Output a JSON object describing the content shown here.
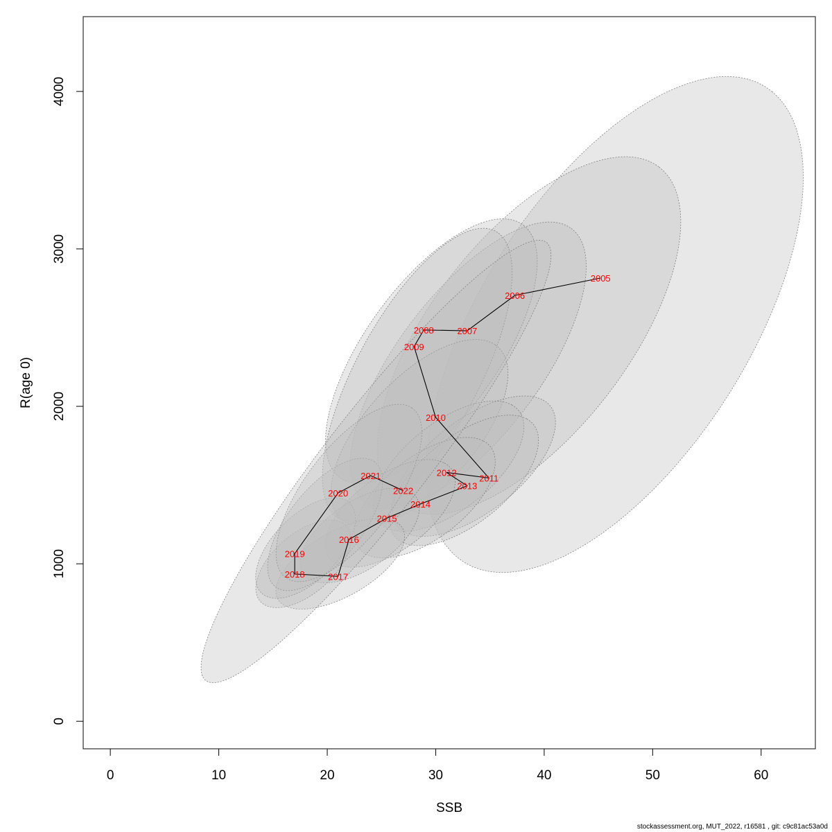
{
  "chart_data": {
    "type": "scatter",
    "title": "",
    "xlabel": "SSB",
    "ylabel": "R(age 0)",
    "xlim": [
      -2.5,
      65
    ],
    "ylim": [
      -175,
      4475
    ],
    "x_ticks": [
      0,
      10,
      20,
      30,
      40,
      50,
      60
    ],
    "y_ticks": [
      0,
      1000,
      2000,
      3000,
      4000
    ],
    "x_tick_labels": [
      "0",
      "10",
      "20",
      "30",
      "40",
      "50",
      "60"
    ],
    "y_tick_labels": [
      "0",
      "1000",
      "2000",
      "3000",
      "4000"
    ],
    "grid": false,
    "legend": "none",
    "colors": {
      "points_line": "#000000",
      "year_labels": "#ff0000",
      "ellipse_fill": "#bebebe",
      "ellipse_stroke": "#808080"
    },
    "points": [
      {
        "year": "2005",
        "ssb": 45.2,
        "r": 2815
      },
      {
        "year": "2006",
        "ssb": 37.3,
        "r": 2705
      },
      {
        "year": "2007",
        "ssb": 32.9,
        "r": 2480
      },
      {
        "year": "2008",
        "ssb": 28.9,
        "r": 2485
      },
      {
        "year": "2009",
        "ssb": 28.0,
        "r": 2380
      },
      {
        "year": "2010",
        "ssb": 30.0,
        "r": 1930
      },
      {
        "year": "2011",
        "ssb": 34.9,
        "r": 1545
      },
      {
        "year": "2012",
        "ssb": 31.0,
        "r": 1580
      },
      {
        "year": "2013",
        "ssb": 32.9,
        "r": 1495
      },
      {
        "year": "2014",
        "ssb": 28.6,
        "r": 1380
      },
      {
        "year": "2015",
        "ssb": 25.5,
        "r": 1290
      },
      {
        "year": "2016",
        "ssb": 22.0,
        "r": 1155
      },
      {
        "year": "2017",
        "ssb": 21.0,
        "r": 920
      },
      {
        "year": "2018",
        "ssb": 17.0,
        "r": 935
      },
      {
        "year": "2019",
        "ssb": 17.0,
        "r": 1065
      },
      {
        "year": "2020",
        "ssb": 21.0,
        "r": 1450
      },
      {
        "year": "2021",
        "ssb": 24.0,
        "r": 1560
      },
      {
        "year": "2022",
        "ssb": 27.0,
        "r": 1465
      }
    ],
    "confidence_ellipses": [
      {
        "year": "2005",
        "center": [
          46.5,
          2520
        ],
        "semi_axis_1": [
          14.5,
          1480
        ],
        "semi_axis_2": [
          9.6,
          -540
        ]
      },
      {
        "year": "2006",
        "center": [
          38.6,
          2450
        ],
        "semi_axis_1": [
          12.0,
          1070
        ],
        "semi_axis_2": [
          7.2,
          -380
        ]
      },
      {
        "year": "2007",
        "center": [
          33.0,
          2260
        ],
        "semi_axis_1": [
          9.5,
          870
        ],
        "semi_axis_2": [
          5.3,
          -270
        ]
      },
      {
        "year": "2008",
        "center": [
          29.6,
          2350
        ],
        "semi_axis_1": [
          8.5,
          800
        ],
        "semi_axis_2": [
          4.8,
          -260
        ]
      },
      {
        "year": "2009",
        "center": [
          28.3,
          2200
        ],
        "semi_axis_1": [
          7.5,
          900
        ],
        "semi_axis_2": [
          4.5,
          -240
        ]
      },
      {
        "year": "2010",
        "center": [
          28.5,
          1830
        ],
        "semi_axis_1": [
          7.0,
          560
        ],
        "semi_axis_2": [
          4.2,
          -200
        ]
      },
      {
        "year": "2011",
        "center": [
          33.5,
          1620
        ],
        "semi_axis_1": [
          6.4,
          420
        ],
        "semi_axis_2": [
          4.0,
          -150
        ]
      },
      {
        "year": "2012",
        "center": [
          31.2,
          1620
        ],
        "semi_axis_1": [
          5.8,
          390
        ],
        "semi_axis_2": [
          3.8,
          -140
        ]
      },
      {
        "year": "2013",
        "center": [
          32.6,
          1530
        ],
        "semi_axis_1": [
          5.8,
          390
        ],
        "semi_axis_2": [
          3.7,
          -140
        ]
      },
      {
        "year": "2014",
        "center": [
          29.0,
          1420
        ],
        "semi_axis_1": [
          5.4,
          360
        ],
        "semi_axis_2": [
          3.6,
          -130
        ]
      },
      {
        "year": "2015",
        "center": [
          25.8,
          1320
        ],
        "semi_axis_1": [
          5.0,
          320
        ],
        "semi_axis_2": [
          3.3,
          -120
        ]
      },
      {
        "year": "2016",
        "center": [
          23.0,
          1180
        ],
        "semi_axis_1": [
          4.6,
          280
        ],
        "semi_axis_2": [
          3.0,
          -110
        ]
      },
      {
        "year": "2017",
        "center": [
          21.2,
          1000
        ],
        "semi_axis_1": [
          5.0,
          270
        ],
        "semi_axis_2": [
          3.2,
          -100
        ]
      },
      {
        "year": "2018",
        "center": [
          17.8,
          1000
        ],
        "semi_axis_1": [
          3.6,
          260
        ],
        "semi_axis_2": [
          2.5,
          -100
        ]
      },
      {
        "year": "2019",
        "center": [
          18.0,
          1100
        ],
        "semi_axis_1": [
          3.8,
          300
        ],
        "semi_axis_2": [
          2.6,
          -110
        ]
      },
      {
        "year": "2020",
        "center": [
          19.8,
          1250
        ],
        "semi_axis_1": [
          4.5,
          400
        ],
        "semi_axis_2": [
          2.8,
          -130
        ]
      },
      {
        "year": "2021",
        "center": [
          22.0,
          1450
        ],
        "semi_axis_1": [
          5.8,
          540
        ],
        "semi_axis_2": [
          3.4,
          -160
        ]
      },
      {
        "year": "2022",
        "center": [
          24.5,
          1650
        ],
        "semi_axis_1": [
          15.5,
          1400
        ],
        "semi_axis_2": [
          4.5,
          -130
        ]
      }
    ]
  },
  "footer": {
    "text": "stockassessment.org, MUT_2022, r16581 , git: c9c81ac53a0d"
  }
}
